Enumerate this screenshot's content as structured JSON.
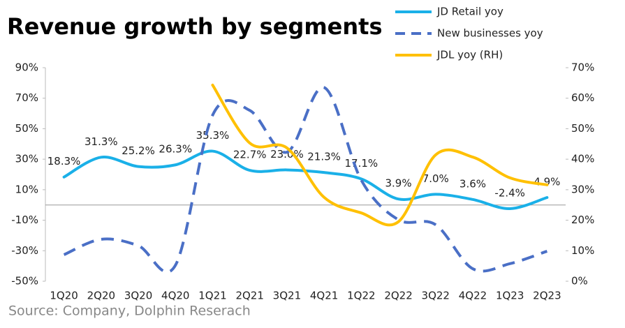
{
  "chart_data": {
    "type": "line",
    "title": "Revenue growth by segments",
    "source": "Source: Company, Dolphin Reserach",
    "categories": [
      "1Q20",
      "2Q20",
      "3Q20",
      "4Q20",
      "1Q21",
      "2Q21",
      "3Q21",
      "4Q21",
      "1Q22",
      "2Q22",
      "3Q22",
      "4Q22",
      "1Q23",
      "2Q23"
    ],
    "series": [
      {
        "name": "JD Retail yoy",
        "color": "#1ab0e8",
        "dashed": false,
        "values": [
          18.3,
          31.3,
          25.2,
          26.3,
          35.3,
          22.7,
          23.0,
          21.3,
          17.1,
          3.9,
          7.0,
          3.6,
          -2.4,
          4.9
        ],
        "value_labels": [
          "18.3%",
          "31.3%",
          "25.2%",
          "26.3%",
          "35.3%",
          "22.7%",
          "23.0%",
          "21.3%",
          "17.1%",
          "3.9%",
          "7.0%",
          "3.6%",
          "-2.4%",
          "4.9%"
        ]
      },
      {
        "name": "New businesses yoy",
        "color": "#4a6fc6",
        "dashed": true,
        "values": [
          -32.6,
          -22.5,
          -26.7,
          -39.5,
          58.9,
          62,
          34.6,
          77,
          16.3,
          -9.7,
          -12.9,
          -41.8,
          -38.5,
          -30.3
        ]
      },
      {
        "name": "JDL yoy (RH)",
        "color": "#ffc000",
        "dashed": false,
        "axis": "y2",
        "values": [
          null,
          null,
          null,
          null,
          64.3,
          45.3,
          43.7,
          27.5,
          22.4,
          19.5,
          41.4,
          40.7,
          33.9,
          31.6
        ]
      }
    ],
    "ylim": [
      -50,
      90
    ],
    "yticks": [
      {
        "value": -50,
        "label": "-50%"
      },
      {
        "value": -30,
        "label": "-30%"
      },
      {
        "value": -10,
        "label": "-10%"
      },
      {
        "value": 10,
        "label": "10%"
      },
      {
        "value": 30,
        "label": "30%"
      },
      {
        "value": 50,
        "label": "50%"
      },
      {
        "value": 70,
        "label": "70%"
      },
      {
        "value": 90,
        "label": "90%"
      }
    ],
    "y2lim": [
      0,
      70
    ],
    "y2ticks": [
      {
        "value": 0,
        "label": "0%"
      },
      {
        "value": 10,
        "label": "10%"
      },
      {
        "value": 20,
        "label": "20%"
      },
      {
        "value": 30,
        "label": "30%"
      },
      {
        "value": 40,
        "label": "40%"
      },
      {
        "value": 50,
        "label": "50%"
      },
      {
        "value": 60,
        "label": "60%"
      },
      {
        "value": 70,
        "label": "70%"
      }
    ]
  }
}
